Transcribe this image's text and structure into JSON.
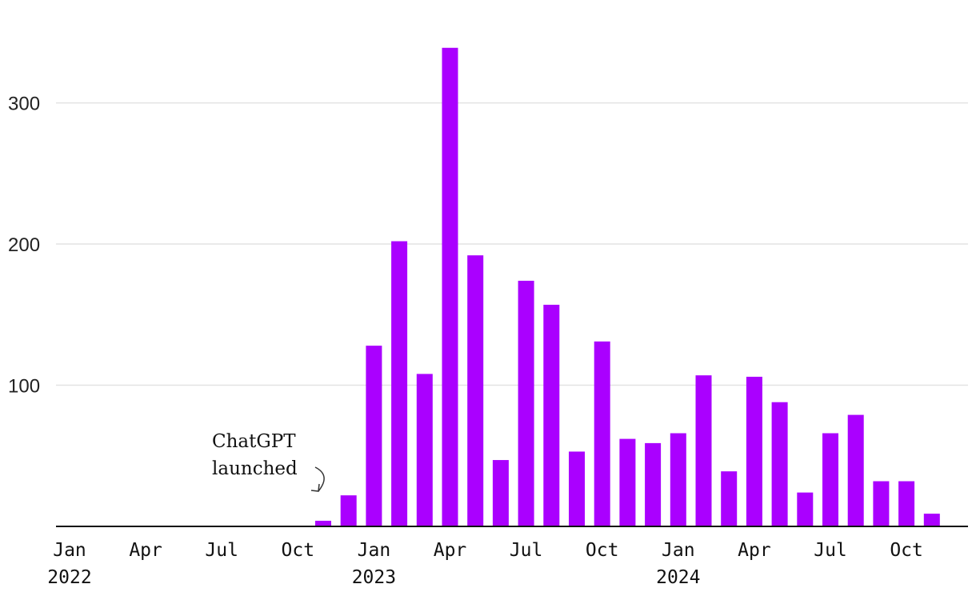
{
  "chart_data": {
    "type": "bar",
    "title": "",
    "xlabel": "",
    "ylabel": "",
    "colors": {
      "bar": "#aa00ff",
      "grid": "#e3e3e3",
      "axis": "#111111"
    },
    "grid": true,
    "ylim": [
      0,
      340
    ],
    "yticks": [
      100,
      200,
      300
    ],
    "x": [
      "Nov 2022",
      "Dec 2022",
      "Jan 2023",
      "Feb 2023",
      "Mar 2023",
      "Apr 2023",
      "May 2023",
      "Jun 2023",
      "Jul 2023",
      "Aug 2023",
      "Sep 2023",
      "Oct 2023",
      "Nov 2023",
      "Dec 2023",
      "Jan 2024",
      "Feb 2024",
      "Mar 2024",
      "Apr 2024",
      "May 2024",
      "Jun 2024",
      "Jul 2024",
      "Aug 2024",
      "Sep 2024",
      "Oct 2024",
      "Nov 2024",
      "Dec 2024"
    ],
    "values": [
      4,
      22,
      128,
      202,
      108,
      339,
      192,
      47,
      174,
      157,
      53,
      131,
      62,
      59,
      66,
      107,
      39,
      106,
      88,
      24,
      66,
      79,
      32,
      32,
      9,
      0
    ],
    "xticks": [
      {
        "at": "Jan 2022",
        "label": "Jan",
        "year": "2022"
      },
      {
        "at": "Apr 2022",
        "label": "Apr",
        "year": ""
      },
      {
        "at": "Jul 2022",
        "label": "Jul",
        "year": ""
      },
      {
        "at": "Oct 2022",
        "label": "Oct",
        "year": ""
      },
      {
        "at": "Jan 2023",
        "label": "Jan",
        "year": "2023"
      },
      {
        "at": "Apr 2023",
        "label": "Apr",
        "year": ""
      },
      {
        "at": "Jul 2023",
        "label": "Jul",
        "year": ""
      },
      {
        "at": "Oct 2023",
        "label": "Oct",
        "year": ""
      },
      {
        "at": "Jan 2024",
        "label": "Jan",
        "year": "2024"
      },
      {
        "at": "Apr 2024",
        "label": "Apr",
        "year": ""
      },
      {
        "at": "Jul 2024",
        "label": "Jul",
        "year": ""
      },
      {
        "at": "Oct 2024",
        "label": "Oct",
        "year": ""
      }
    ],
    "annotations": [
      {
        "lines": [
          "ChatGPT",
          "launched"
        ],
        "points_to": "Nov 2022"
      }
    ]
  }
}
